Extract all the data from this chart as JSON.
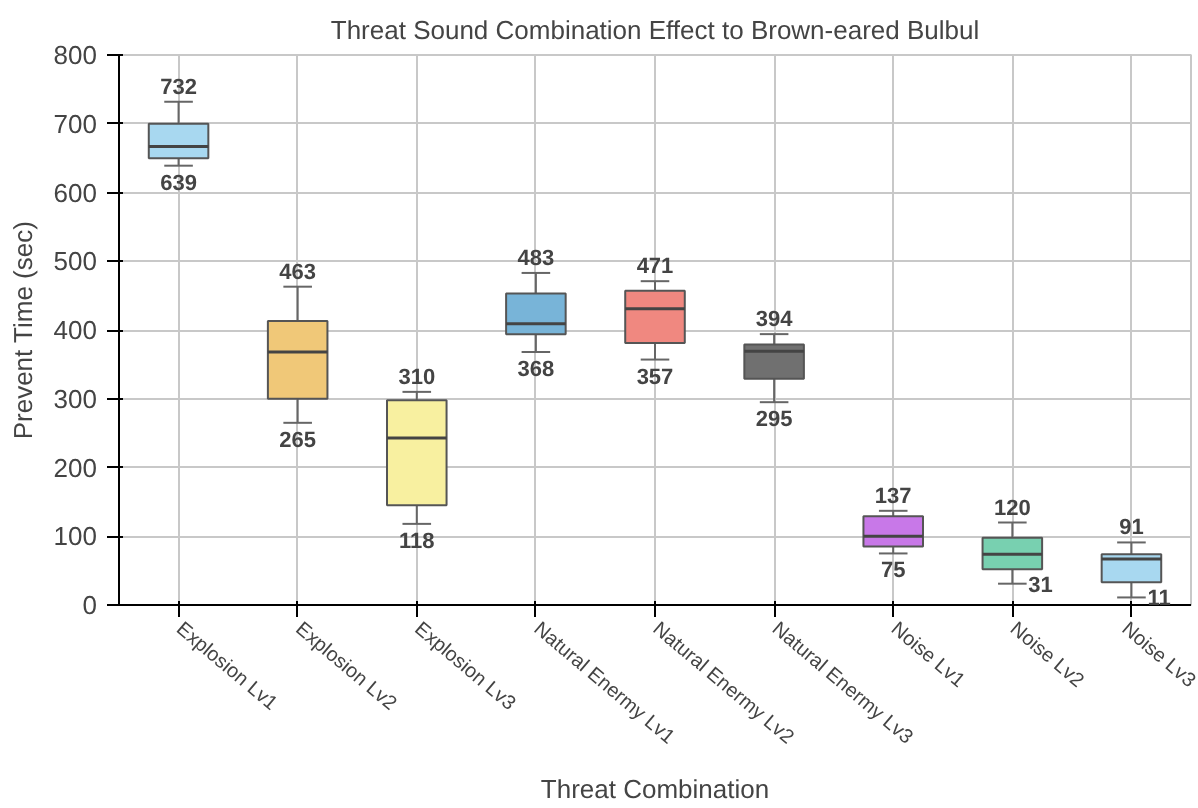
{
  "chart_data": {
    "type": "box",
    "title": "Threat Sound Combination Effect to Brown-eared Bulbul",
    "xlabel": "Threat Combination",
    "ylabel": "Prevent Time (sec)",
    "categories": [
      "Explosion Lv1",
      "Explosion Lv2",
      "Explosion Lv3",
      "Natural Enermy Lv1",
      "Natural Enermy Lv2",
      "Natural Enermy Lv3",
      "Noise Lv1",
      "Noise Lv2",
      "Noise Lv3"
    ],
    "colors": [
      "#a8d8f0",
      "#f0c878",
      "#f8f0a0",
      "#78b4d8",
      "#f08880",
      "#707070",
      "#c878e8",
      "#78d0b0",
      "#a8d8f0"
    ],
    "boxes": [
      {
        "low": 639,
        "q1": 650,
        "median": 667,
        "q3": 700,
        "high": 732
      },
      {
        "low": 265,
        "q1": 300,
        "median": 368,
        "q3": 413,
        "high": 463
      },
      {
        "low": 118,
        "q1": 145,
        "median": 243,
        "q3": 298,
        "high": 310
      },
      {
        "low": 368,
        "q1": 394,
        "median": 409,
        "q3": 453,
        "high": 483
      },
      {
        "low": 357,
        "q1": 381,
        "median": 431,
        "q3": 457,
        "high": 471
      },
      {
        "low": 295,
        "q1": 329,
        "median": 369,
        "q3": 379,
        "high": 394
      },
      {
        "low": 75,
        "q1": 85,
        "median": 100,
        "q3": 129,
        "high": 137
      },
      {
        "low": 31,
        "q1": 52,
        "median": 74,
        "q3": 98,
        "high": 120
      },
      {
        "low": 11,
        "q1": 33,
        "median": 67,
        "q3": 74,
        "high": 91
      }
    ],
    "annotations": [
      {
        "text": "732",
        "x": "Explosion Lv1",
        "y": 732
      },
      {
        "text": "639",
        "x": "Explosion Lv1",
        "y": 639
      },
      {
        "text": "463",
        "x": "Explosion Lv2",
        "y": 463
      },
      {
        "text": "265",
        "x": "Explosion Lv2",
        "y": 265
      },
      {
        "text": "310",
        "x": "Explosion Lv3",
        "y": 310
      },
      {
        "text": "118",
        "x": "Explosion Lv3",
        "y": 118
      },
      {
        "text": "483",
        "x": "Natural Enermy Lv1",
        "y": 483
      },
      {
        "text": "368",
        "x": "Natural Enermy Lv1",
        "y": 368
      },
      {
        "text": "471",
        "x": "Natural Enermy Lv2",
        "y": 471
      },
      {
        "text": "357",
        "x": "Natural Enermy Lv2",
        "y": 357
      },
      {
        "text": "394",
        "x": "Natural Enermy Lv3",
        "y": 394
      },
      {
        "text": "295",
        "x": "Natural Enermy Lv3",
        "y": 295
      },
      {
        "text": "137",
        "x": "Noise Lv1",
        "y": 137
      },
      {
        "text": "75",
        "x": "Noise Lv1",
        "y": 75
      },
      {
        "text": "120",
        "x": "Noise Lv2",
        "y": 120
      },
      {
        "text": "31",
        "x": "Noise Lv2",
        "y": 31
      },
      {
        "text": "91",
        "x": "Noise Lv3",
        "y": 91
      },
      {
        "text": "11",
        "x": "Noise Lv3",
        "y": 11
      }
    ],
    "ylim": [
      0,
      800
    ],
    "yticks": [
      0,
      100,
      200,
      300,
      400,
      500,
      600,
      700,
      800
    ],
    "grid": true
  }
}
